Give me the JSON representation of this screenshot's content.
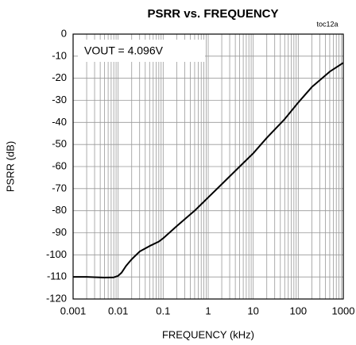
{
  "chart_data": {
    "type": "line",
    "title": "PSRR vs. FREQUENCY",
    "tag": "toc12a",
    "x_label": "FREQUENCY (kHz)",
    "y_label": "PSRR (dB)",
    "annotation": "VOUT = 4.096V",
    "x": [
      0.001,
      0.002,
      0.005,
      0.008,
      0.01,
      0.012,
      0.015,
      0.02,
      0.03,
      0.05,
      0.08,
      0.1,
      0.2,
      0.5,
      1,
      2,
      5,
      10,
      20,
      50,
      100,
      200,
      500,
      1000
    ],
    "values": [
      -110,
      -110,
      -110.3,
      -110.2,
      -109.5,
      -108,
      -105,
      -102,
      -98.5,
      -96,
      -94,
      -92.5,
      -87,
      -80,
      -74,
      -68,
      -60,
      -54,
      -47,
      -38.5,
      -31,
      -24,
      -17,
      -13
    ],
    "color": "#000000",
    "x_log": true,
    "xlim": [
      0.001,
      1000
    ],
    "xticks": [
      0.001,
      0.01,
      0.1,
      1,
      10,
      100,
      1000
    ],
    "ylim": [
      -120,
      0
    ],
    "yticks": [
      0,
      -10,
      -20,
      -30,
      -40,
      -50,
      -60,
      -70,
      -80,
      -90,
      -100,
      -110,
      -120
    ],
    "grid": true,
    "minor_grid": true
  }
}
